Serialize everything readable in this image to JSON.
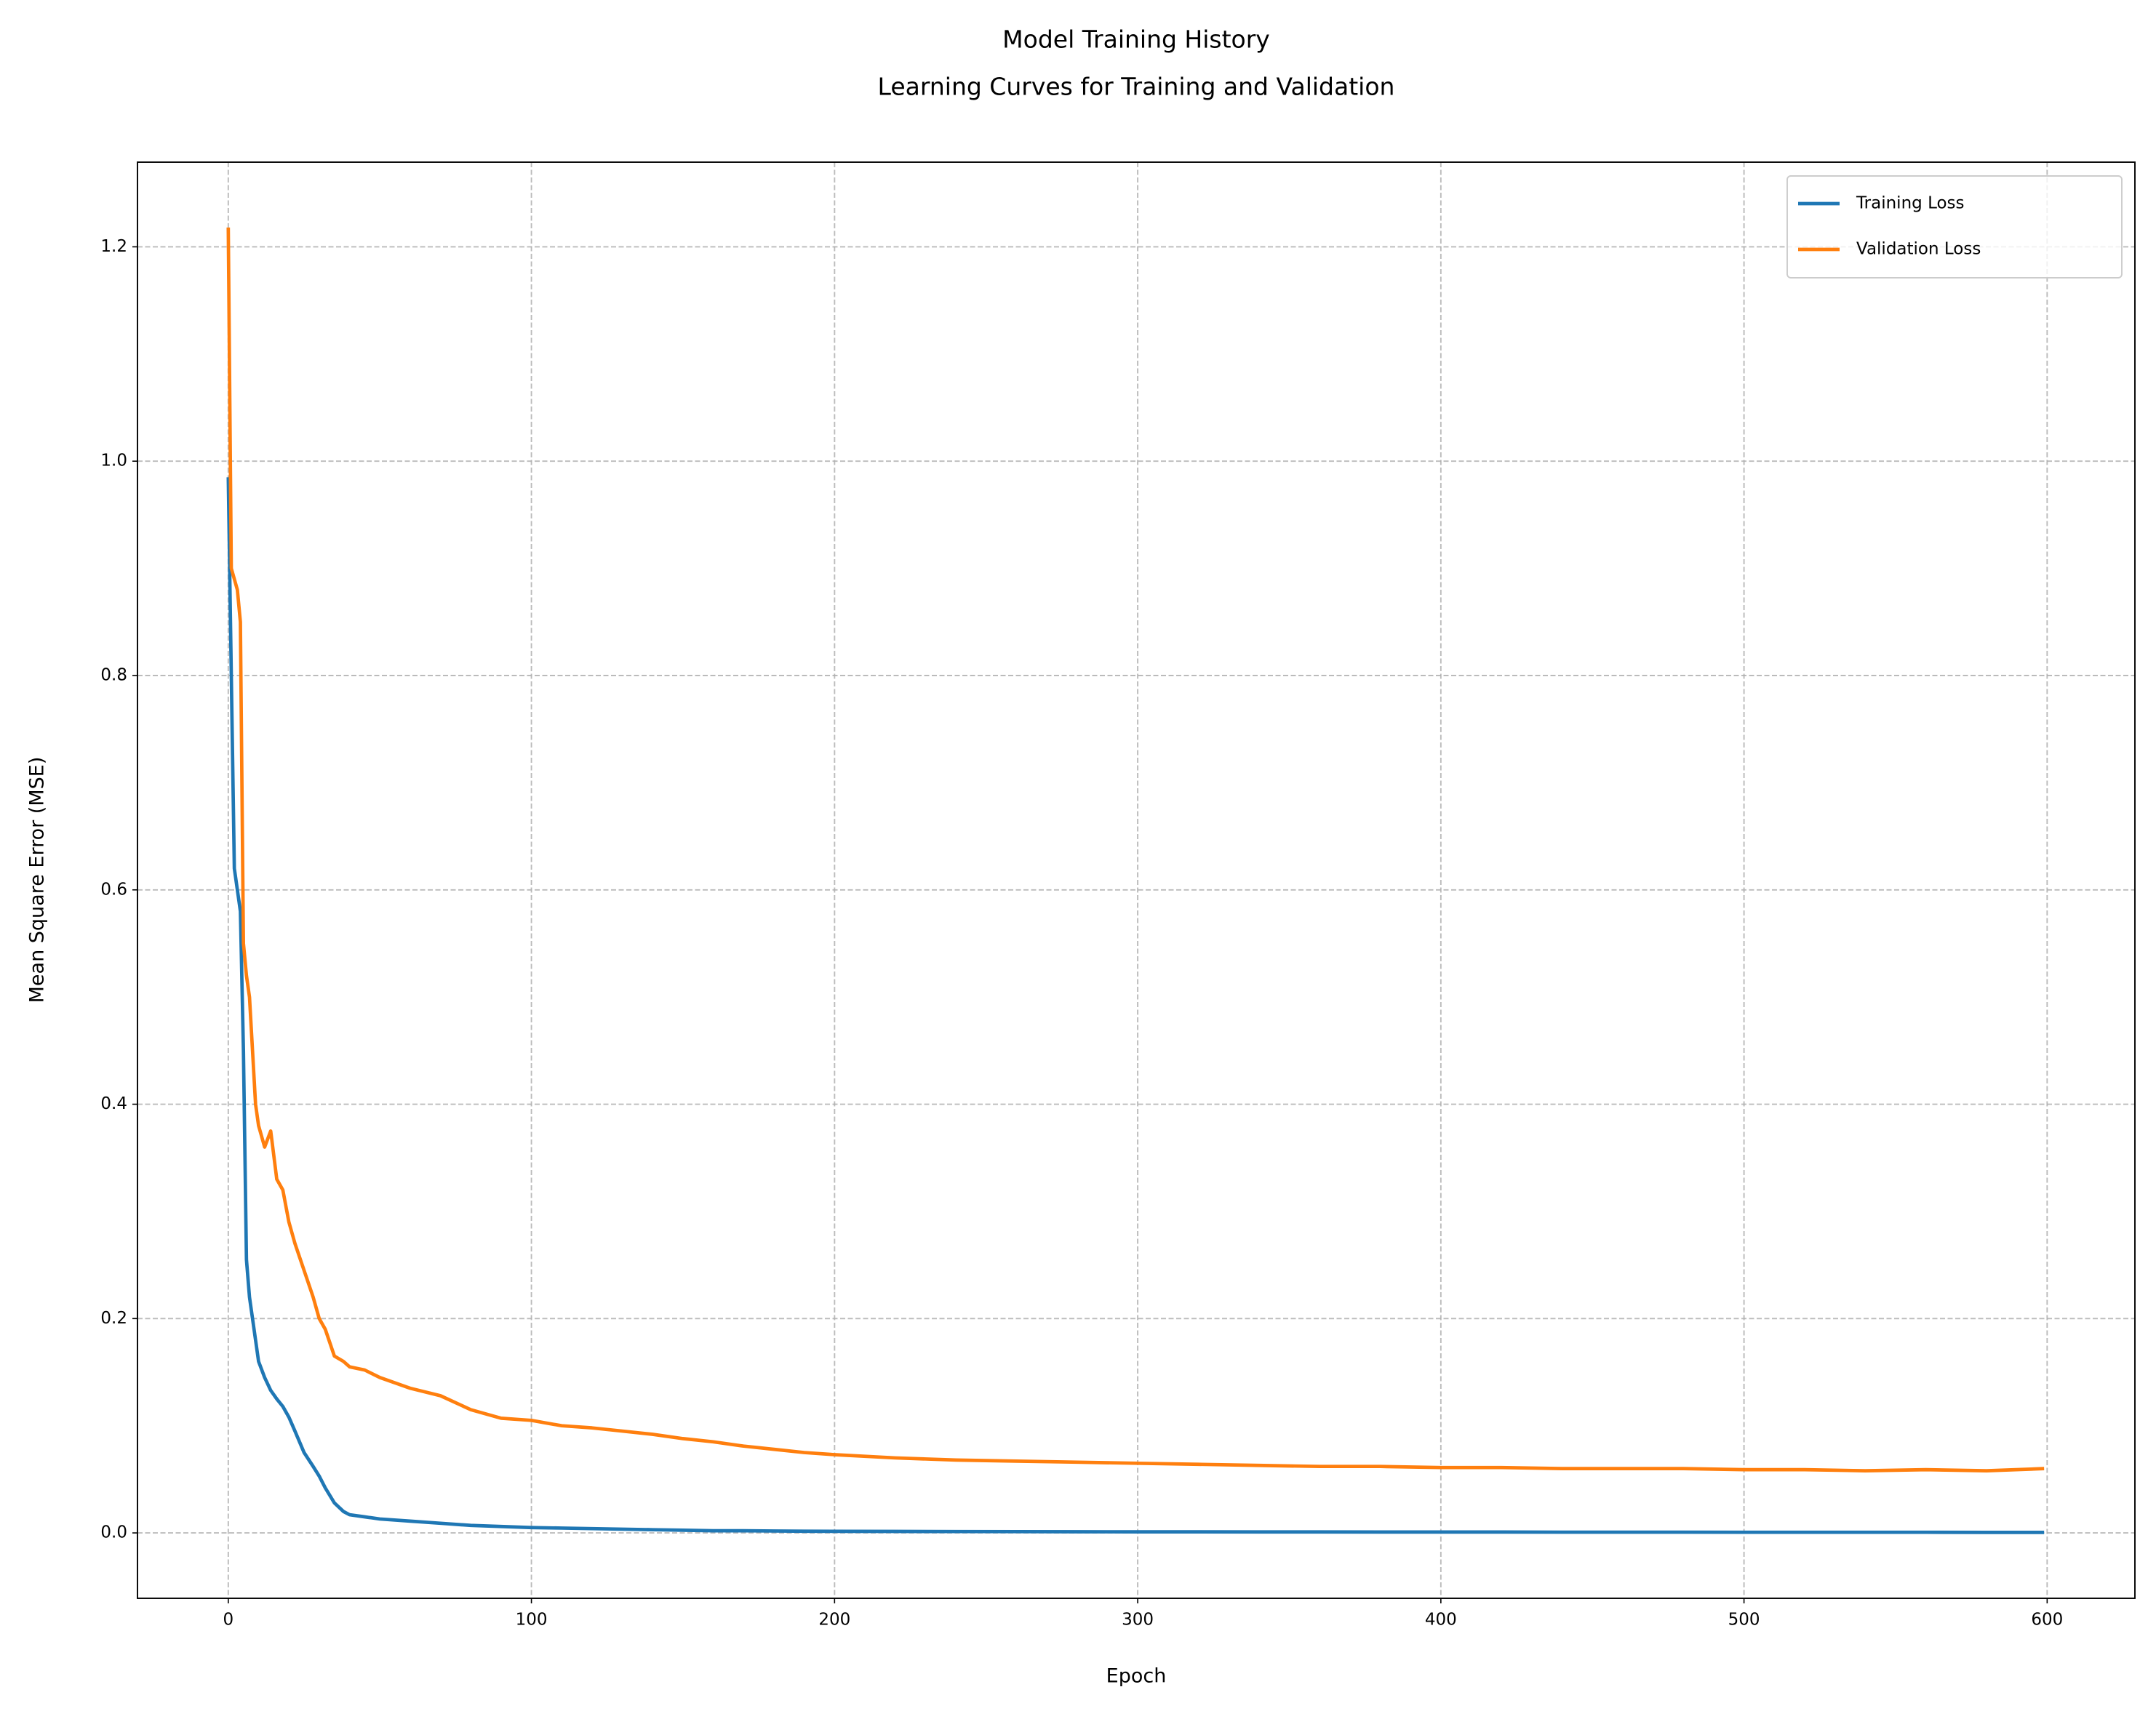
{
  "chart_data": {
    "type": "line",
    "title": "Model Training History",
    "subtitle": "Learning Curves for Training and Validation",
    "x_label": "Epoch",
    "y_label": "Mean Square Error (MSE)",
    "x": [
      0,
      1,
      2,
      3,
      4,
      5,
      6,
      7,
      8,
      9,
      10,
      12,
      14,
      16,
      18,
      20,
      22,
      25,
      28,
      30,
      32,
      35,
      38,
      40,
      45,
      50,
      60,
      70,
      80,
      90,
      100,
      110,
      120,
      130,
      140,
      150,
      160,
      170,
      180,
      190,
      200,
      220,
      240,
      260,
      280,
      300,
      320,
      340,
      360,
      380,
      400,
      420,
      440,
      460,
      480,
      500,
      520,
      540,
      560,
      580,
      599
    ],
    "series": [
      {
        "name": "Training Loss",
        "color": "#1f77b4",
        "values": [
          0.985,
          0.8,
          0.62,
          0.6,
          0.58,
          0.45,
          0.255,
          0.22,
          0.2,
          0.18,
          0.16,
          0.145,
          0.133,
          0.125,
          0.118,
          0.108,
          0.095,
          0.075,
          0.062,
          0.053,
          0.042,
          0.028,
          0.02,
          0.017,
          0.015,
          0.013,
          0.011,
          0.009,
          0.007,
          0.006,
          0.005,
          0.0045,
          0.004,
          0.0035,
          0.003,
          0.0025,
          0.002,
          0.002,
          0.0018,
          0.0016,
          0.0015,
          0.0014,
          0.0013,
          0.0012,
          0.0011,
          0.001,
          0.001,
          0.0009,
          0.0009,
          0.0008,
          0.0008,
          0.0008,
          0.0007,
          0.0007,
          0.0007,
          0.0006,
          0.0006,
          0.0006,
          0.0006,
          0.0005,
          0.0005
        ]
      },
      {
        "name": "Validation Loss",
        "color": "#ff7f0e",
        "values": [
          1.218,
          0.9,
          0.89,
          0.88,
          0.85,
          0.55,
          0.52,
          0.5,
          0.45,
          0.4,
          0.38,
          0.36,
          0.375,
          0.33,
          0.32,
          0.29,
          0.27,
          0.245,
          0.22,
          0.2,
          0.19,
          0.165,
          0.16,
          0.155,
          0.152,
          0.145,
          0.135,
          0.128,
          0.115,
          0.107,
          0.105,
          0.1,
          0.098,
          0.095,
          0.092,
          0.088,
          0.085,
          0.081,
          0.078,
          0.075,
          0.073,
          0.07,
          0.068,
          0.067,
          0.066,
          0.065,
          0.064,
          0.063,
          0.062,
          0.062,
          0.061,
          0.061,
          0.06,
          0.06,
          0.06,
          0.059,
          0.059,
          0.058,
          0.059,
          0.058,
          0.06
        ]
      }
    ],
    "xlim": [
      -29.95,
      628.95
    ],
    "ylim": [
      -0.061,
      1.279
    ],
    "xticks": [
      0,
      100,
      200,
      300,
      400,
      500,
      600
    ],
    "yticks": [
      {
        "value": 0,
        "label": "0.0"
      },
      0.2,
      0.4,
      0.6,
      0.8,
      {
        "value": 1,
        "label": "1.0"
      },
      1.2
    ],
    "grid": true,
    "legend": "upper right"
  }
}
